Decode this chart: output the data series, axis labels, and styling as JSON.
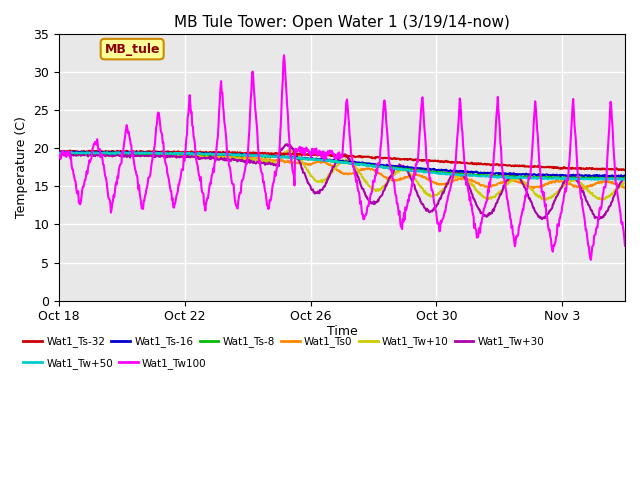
{
  "title": "MB Tule Tower: Open Water 1 (3/19/14-now)",
  "xlabel": "Time",
  "ylabel": "Temperature (C)",
  "ylim": [
    0,
    35
  ],
  "x_ticks": [
    "Oct 18",
    "Oct 22",
    "Oct 26",
    "Oct 30",
    "Nov 3"
  ],
  "x_tick_days": [
    0,
    4,
    8,
    12,
    16
  ],
  "n_days": 18,
  "background_color": "#ffffff",
  "plot_bg_color": "#e8e8e8",
  "grid_color": "#ffffff",
  "series": [
    {
      "name": "Wat1_Ts-32",
      "color": "#cc0000",
      "lw": 1.5
    },
    {
      "name": "Wat1_Ts-16",
      "color": "#0000cc",
      "lw": 1.5
    },
    {
      "name": "Wat1_Ts-8",
      "color": "#00bb00",
      "lw": 1.5
    },
    {
      "name": "Wat1_Ts0",
      "color": "#ff8800",
      "lw": 1.5
    },
    {
      "name": "Wat1_Tw+10",
      "color": "#cccc00",
      "lw": 1.5
    },
    {
      "name": "Wat1_Tw+30",
      "color": "#aa00aa",
      "lw": 1.5
    },
    {
      "name": "Wat1_Tw+50",
      "color": "#00cccc",
      "lw": 1.5
    },
    {
      "name": "Wat1_Tw100",
      "color": "#ff00ff",
      "lw": 1.5
    }
  ],
  "annotation_text": "MB_tule",
  "annotation_color": "#880000",
  "annotation_bg": "#ffff99",
  "annotation_border": "#cc8800"
}
